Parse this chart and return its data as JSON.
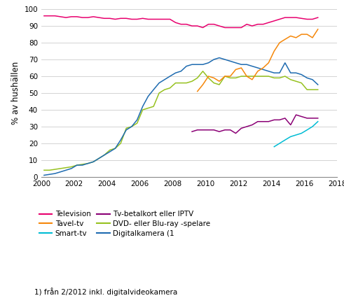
{
  "title": "",
  "ylabel": "% av hushällen",
  "footnote": "1) från 2/2012 inkl. digitalvideokamera",
  "xlim": [
    2000,
    2018
  ],
  "ylim": [
    0,
    100
  ],
  "xticks": [
    2000,
    2002,
    2004,
    2006,
    2008,
    2010,
    2012,
    2014,
    2016,
    2018
  ],
  "yticks": [
    0,
    10,
    20,
    30,
    40,
    50,
    60,
    70,
    80,
    90,
    100
  ],
  "legend": [
    {
      "label": "Television",
      "color": "#e8006e"
    },
    {
      "label": "Tavel-tv",
      "color": "#f5870a"
    },
    {
      "label": "Smart-tv",
      "color": "#00bcd4"
    },
    {
      "label": "Tv-betalkort eller IPTV",
      "color": "#8b0075"
    },
    {
      "label": "DVD- eller Blu-ray -spelare",
      "color": "#96c11f"
    },
    {
      "label": "Digitalkamera (1",
      "color": "#1e6bb0"
    }
  ],
  "series": {
    "Television": {
      "color": "#e8006e",
      "x": [
        2000.17,
        2000.5,
        2000.83,
        2001.17,
        2001.5,
        2001.83,
        2002.17,
        2002.5,
        2002.83,
        2003.17,
        2003.5,
        2003.83,
        2004.17,
        2004.5,
        2004.83,
        2005.17,
        2005.5,
        2005.83,
        2006.17,
        2006.5,
        2006.83,
        2007.17,
        2007.5,
        2007.83,
        2008.17,
        2008.5,
        2008.83,
        2009.17,
        2009.5,
        2009.83,
        2010.17,
        2010.5,
        2010.83,
        2011.17,
        2011.5,
        2011.83,
        2012.17,
        2012.5,
        2012.83,
        2013.17,
        2013.5,
        2013.83,
        2014.17,
        2014.5,
        2014.83,
        2015.17,
        2015.5,
        2015.83,
        2016.17,
        2016.5,
        2016.83
      ],
      "y": [
        96,
        96,
        96,
        95.5,
        95,
        95.5,
        95.5,
        95,
        95,
        95.5,
        95,
        94.5,
        94.5,
        94,
        94.5,
        94.5,
        94,
        94,
        94.5,
        94,
        94,
        94,
        94,
        94,
        92,
        91,
        91,
        90,
        90,
        89,
        91,
        91,
        90,
        89,
        89,
        89,
        89,
        91,
        90,
        91,
        91,
        92,
        93,
        94,
        95,
        95,
        95,
        94.5,
        94,
        94,
        95
      ]
    },
    "Tavel_tv": {
      "color": "#f5870a",
      "x": [
        2009.5,
        2009.83,
        2010.17,
        2010.5,
        2010.83,
        2011.17,
        2011.5,
        2011.83,
        2012.17,
        2012.5,
        2012.83,
        2013.17,
        2013.5,
        2013.83,
        2014.17,
        2014.5,
        2014.83,
        2015.17,
        2015.5,
        2015.83,
        2016.17,
        2016.5,
        2016.83
      ],
      "y": [
        51,
        55,
        60,
        59,
        57,
        60,
        60,
        64,
        65,
        60,
        58,
        63,
        65,
        68,
        75,
        80,
        82,
        84,
        83,
        85,
        85,
        83,
        88
      ]
    },
    "Smart_tv": {
      "color": "#00bcd4",
      "x": [
        2014.17,
        2014.5,
        2014.83,
        2015.17,
        2015.5,
        2015.83,
        2016.17,
        2016.5,
        2016.83
      ],
      "y": [
        18,
        20,
        22,
        24,
        25,
        26,
        28,
        30,
        33
      ]
    },
    "Tv_betalkort": {
      "color": "#8b0075",
      "x": [
        2009.17,
        2009.5,
        2009.83,
        2010.17,
        2010.5,
        2010.83,
        2011.17,
        2011.5,
        2011.83,
        2012.17,
        2012.5,
        2012.83,
        2013.17,
        2013.5,
        2013.83,
        2014.17,
        2014.5,
        2014.83,
        2015.17,
        2015.5,
        2015.83,
        2016.17,
        2016.5,
        2016.83
      ],
      "y": [
        27,
        28,
        28,
        28,
        28,
        27,
        28,
        28,
        26,
        29,
        30,
        31,
        33,
        33,
        33,
        34,
        34,
        35,
        31,
        37,
        36,
        35,
        35,
        35
      ]
    },
    "DVD": {
      "color": "#96c11f",
      "x": [
        2000.17,
        2000.5,
        2000.83,
        2001.17,
        2001.5,
        2001.83,
        2002.17,
        2002.5,
        2002.83,
        2003.17,
        2003.5,
        2003.83,
        2004.17,
        2004.5,
        2004.83,
        2005.17,
        2005.5,
        2005.83,
        2006.17,
        2006.5,
        2006.83,
        2007.17,
        2007.5,
        2007.83,
        2008.17,
        2008.5,
        2008.83,
        2009.17,
        2009.5,
        2009.83,
        2010.17,
        2010.5,
        2010.83,
        2011.17,
        2011.5,
        2011.83,
        2012.17,
        2012.5,
        2012.83,
        2013.17,
        2013.5,
        2013.83,
        2014.17,
        2014.5,
        2014.83,
        2015.17,
        2015.5,
        2015.83,
        2016.17,
        2016.5,
        2016.83
      ],
      "y": [
        4,
        4,
        4.5,
        5,
        5.5,
        6,
        7,
        7.5,
        8,
        9,
        11,
        13,
        16,
        17,
        20,
        29,
        30,
        32,
        40,
        41,
        42,
        50,
        52,
        53,
        56,
        56,
        56,
        57,
        59,
        63,
        59,
        56,
        55,
        60,
        59,
        59,
        60,
        60,
        60,
        60,
        60,
        60,
        59,
        59,
        60,
        58,
        57,
        56,
        52,
        52,
        52
      ]
    },
    "Digitalkamera": {
      "color": "#1e6bb0",
      "x": [
        2000.17,
        2000.5,
        2000.83,
        2001.17,
        2001.5,
        2001.83,
        2002.17,
        2002.5,
        2002.83,
        2003.17,
        2003.5,
        2003.83,
        2004.17,
        2004.5,
        2004.83,
        2005.17,
        2005.5,
        2005.83,
        2006.17,
        2006.5,
        2006.83,
        2007.17,
        2007.5,
        2007.83,
        2008.17,
        2008.5,
        2008.83,
        2009.17,
        2009.5,
        2009.83,
        2010.17,
        2010.5,
        2010.83,
        2011.17,
        2011.5,
        2011.83,
        2012.17,
        2012.5,
        2012.83,
        2013.17,
        2013.5,
        2013.83,
        2014.17,
        2014.5,
        2014.83,
        2015.17,
        2015.5,
        2015.83,
        2016.17,
        2016.5,
        2016.83
      ],
      "y": [
        1,
        1.5,
        2,
        3,
        4,
        5,
        7,
        7,
        8,
        9,
        11,
        13,
        15,
        17,
        22,
        28,
        30,
        34,
        42,
        48,
        52,
        56,
        58,
        60,
        62,
        63,
        66,
        67,
        67,
        67,
        68,
        70,
        71,
        70,
        69,
        68,
        67,
        67,
        66,
        65,
        64,
        63,
        62,
        62,
        68,
        62,
        62,
        61,
        59,
        58,
        55
      ]
    }
  }
}
